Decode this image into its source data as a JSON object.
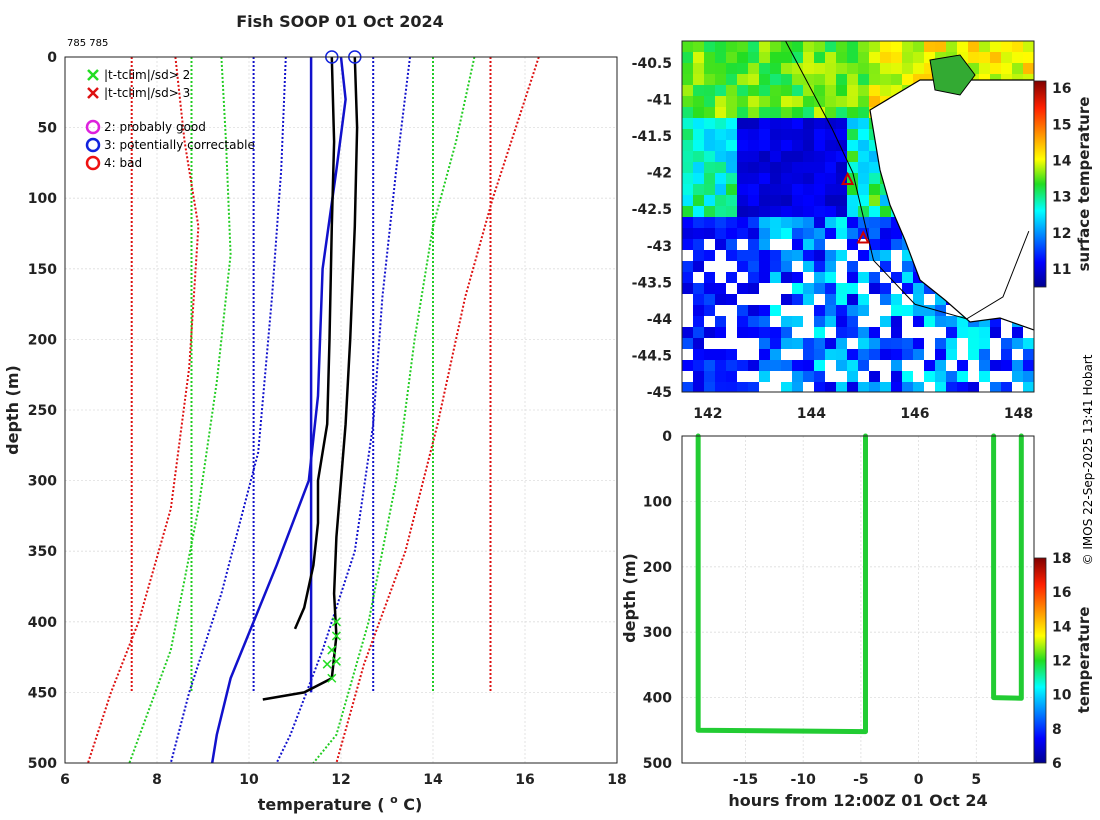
{
  "title": "Fish SOOP 01 Oct 2024",
  "id_label": "785 785",
  "stamp": "© IMOS 22-Sep-2025 13:41 Hobart",
  "legend": {
    "x_items": [
      {
        "label": "|t-tclim|/sd> 2",
        "color": "#22dd22"
      },
      {
        "label": "|t-tclim|/sd> 3",
        "color": "#dd1111"
      }
    ],
    "circle_items": [
      {
        "label": "2: probably good",
        "color": "#dd22dd"
      },
      {
        "label": "3: potentially correctable",
        "color": "#1122dd"
      },
      {
        "label": "4: bad",
        "color": "#ee1111"
      }
    ]
  },
  "chart_data": [
    {
      "type": "line",
      "name": "profile",
      "xlabel": "temperature (o C)",
      "ylabel": "depth (m)",
      "xlim": [
        6,
        18
      ],
      "ylim": [
        0,
        500
      ],
      "xticks": [
        6,
        8,
        10,
        12,
        14,
        16,
        18
      ],
      "yticks": [
        0,
        50,
        100,
        150,
        200,
        250,
        300,
        350,
        400,
        450,
        500
      ],
      "grid": true,
      "series": [
        {
          "name": "clim -3sd (red)",
          "style": "dotted",
          "color": "#dd1111",
          "points": [
            [
              7.45,
              0
            ],
            [
              7.45,
              450
            ]
          ]
        },
        {
          "name": "clim +3sd (red)",
          "style": "dotted",
          "color": "#dd1111",
          "points": [
            [
              15.25,
              0
            ],
            [
              15.25,
              450
            ]
          ]
        },
        {
          "name": "clim -2sd (green)",
          "style": "dotted",
          "color": "#22cc22",
          "points": [
            [
              8.75,
              0
            ],
            [
              8.75,
              450
            ]
          ]
        },
        {
          "name": "clim +2sd (green)",
          "style": "dotted",
          "color": "#22cc22",
          "points": [
            [
              14.0,
              0
            ],
            [
              14.0,
              450
            ]
          ]
        },
        {
          "name": "clim -1sd (blue)",
          "style": "dotted",
          "color": "#1111cc",
          "points": [
            [
              10.1,
              0
            ],
            [
              10.1,
              450
            ]
          ]
        },
        {
          "name": "clim +1sd (blue)",
          "style": "dotted",
          "color": "#1111cc",
          "points": [
            [
              12.7,
              0
            ],
            [
              12.7,
              450
            ]
          ]
        },
        {
          "name": "clim mean (blue)",
          "style": "solid",
          "color": "#1111cc",
          "points": [
            [
              11.35,
              0
            ],
            [
              11.35,
              450
            ]
          ]
        },
        {
          "name": "local -3sd",
          "style": "dotted",
          "color": "#dd1111",
          "points": [
            [
              8.4,
              0
            ],
            [
              8.6,
              60
            ],
            [
              8.9,
              120
            ],
            [
              8.7,
              220
            ],
            [
              8.3,
              320
            ],
            [
              7.6,
              400
            ],
            [
              7.0,
              450
            ],
            [
              6.5,
              500
            ]
          ]
        },
        {
          "name": "local +3sd",
          "style": "dotted",
          "color": "#dd1111",
          "points": [
            [
              16.3,
              0
            ],
            [
              15.8,
              50
            ],
            [
              15.3,
              100
            ],
            [
              14.7,
              170
            ],
            [
              14.1,
              260
            ],
            [
              13.4,
              350
            ],
            [
              12.5,
              430
            ],
            [
              11.9,
              500
            ]
          ]
        },
        {
          "name": "local -2sd",
          "style": "dotted",
          "color": "#22cc22",
          "points": [
            [
              9.4,
              0
            ],
            [
              9.5,
              60
            ],
            [
              9.6,
              140
            ],
            [
              9.3,
              230
            ],
            [
              8.9,
              320
            ],
            [
              8.3,
              420
            ],
            [
              7.4,
              500
            ]
          ]
        },
        {
          "name": "local +2sd",
          "style": "dotted",
          "color": "#22cc22",
          "points": [
            [
              14.9,
              0
            ],
            [
              14.5,
              60
            ],
            [
              14.0,
              120
            ],
            [
              13.6,
              200
            ],
            [
              13.2,
              300
            ],
            [
              12.6,
              400
            ],
            [
              11.9,
              480
            ],
            [
              11.4,
              500
            ]
          ]
        },
        {
          "name": "local -1sd",
          "style": "dotted",
          "color": "#1111cc",
          "points": [
            [
              10.8,
              0
            ],
            [
              10.7,
              80
            ],
            [
              10.5,
              170
            ],
            [
              10.2,
              280
            ],
            [
              9.4,
              380
            ],
            [
              8.7,
              450
            ],
            [
              8.3,
              500
            ]
          ]
        },
        {
          "name": "local +1sd",
          "style": "dotted",
          "color": "#1111cc",
          "points": [
            [
              13.5,
              0
            ],
            [
              13.2,
              80
            ],
            [
              12.9,
              170
            ],
            [
              12.7,
              260
            ],
            [
              12.3,
              350
            ],
            [
              11.6,
              420
            ],
            [
              10.9,
              480
            ],
            [
              10.6,
              500
            ]
          ]
        },
        {
          "name": "mean profile",
          "style": "solid",
          "color": "#1111cc",
          "points": [
            [
              12.0,
              0
            ],
            [
              12.1,
              30
            ],
            [
              11.9,
              80
            ],
            [
              11.6,
              150
            ],
            [
              11.5,
              240
            ],
            [
              11.3,
              300
            ],
            [
              10.6,
              360
            ],
            [
              10.1,
              400
            ],
            [
              9.6,
              440
            ],
            [
              9.3,
              480
            ],
            [
              9.2,
              500
            ]
          ]
        },
        {
          "name": "measured profile A",
          "style": "solid",
          "color": "#000000",
          "points": [
            [
              11.8,
              0
            ],
            [
              11.85,
              60
            ],
            [
              11.8,
              120
            ],
            [
              11.75,
              200
            ],
            [
              11.7,
              260
            ],
            [
              11.5,
              300
            ],
            [
              11.5,
              330
            ],
            [
              11.4,
              360
            ],
            [
              11.2,
              390
            ],
            [
              11.0,
              405
            ]
          ]
        },
        {
          "name": "measured profile B",
          "style": "solid",
          "color": "#000000",
          "points": [
            [
              12.3,
              0
            ],
            [
              12.35,
              50
            ],
            [
              12.3,
              120
            ],
            [
              12.2,
              200
            ],
            [
              12.1,
              260
            ],
            [
              12.0,
              300
            ],
            [
              11.9,
              340
            ],
            [
              11.85,
              380
            ],
            [
              11.9,
              410
            ],
            [
              11.8,
              440
            ],
            [
              11.2,
              450
            ],
            [
              10.3,
              455
            ]
          ]
        }
      ],
      "flag_circles": [
        [
          11.8,
          0
        ],
        [
          12.3,
          0
        ]
      ],
      "flag_x": [
        [
          11.9,
          400
        ],
        [
          11.9,
          410
        ],
        [
          11.8,
          420
        ],
        [
          11.9,
          428
        ],
        [
          11.7,
          430
        ],
        [
          11.8,
          440
        ]
      ]
    },
    {
      "type": "heatmap",
      "name": "sst-map",
      "colorbar_label": "surface temperature",
      "clim": [
        10.5,
        16.2
      ],
      "colorbar_ticks": [
        11,
        12,
        13,
        14,
        15,
        16
      ],
      "xlim": [
        141.5,
        148.3
      ],
      "ylim": [
        -45.0,
        -40.2
      ],
      "xticks": [
        142,
        144,
        146,
        148
      ],
      "yticks": [
        -40.5,
        -41,
        -41.5,
        -42,
        -42.5,
        -43,
        -43.5,
        -44,
        -44.5,
        -45
      ],
      "track": [
        [
          143.5,
          -40.2
        ],
        [
          144.4,
          -41.4
        ],
        [
          144.8,
          -42.0
        ],
        [
          145.2,
          -43.2
        ],
        [
          146.0,
          -43.8
        ],
        [
          147.0,
          -44.0
        ],
        [
          147.7,
          -43.7
        ],
        [
          148.2,
          -42.8
        ]
      ],
      "markers": [
        [
          144.7,
          -42.1
        ],
        [
          145.0,
          -42.9
        ]
      ]
    },
    {
      "type": "scatter",
      "name": "time-depth",
      "xlabel": "hours from 12:00Z 01 Oct 24",
      "ylabel": "depth (m)",
      "colorbar_label": "temperature",
      "clim": [
        6,
        18
      ],
      "colorbar_ticks": [
        6,
        8,
        10,
        12,
        14,
        16,
        18
      ],
      "xlim": [
        -20.5,
        10.0
      ],
      "ylim": [
        0,
        500
      ],
      "xticks": [
        -15,
        -10,
        -5,
        0,
        5
      ],
      "yticks": [
        0,
        100,
        200,
        300,
        400,
        500
      ],
      "segments": [
        [
          [
            -19.1,
            0
          ],
          [
            -19.1,
            450
          ],
          [
            -4.6,
            452
          ],
          [
            -4.6,
            0
          ]
        ],
        [
          [
            6.5,
            0
          ],
          [
            6.5,
            400
          ],
          [
            8.9,
            401
          ],
          [
            8.9,
            0
          ]
        ]
      ]
    }
  ]
}
